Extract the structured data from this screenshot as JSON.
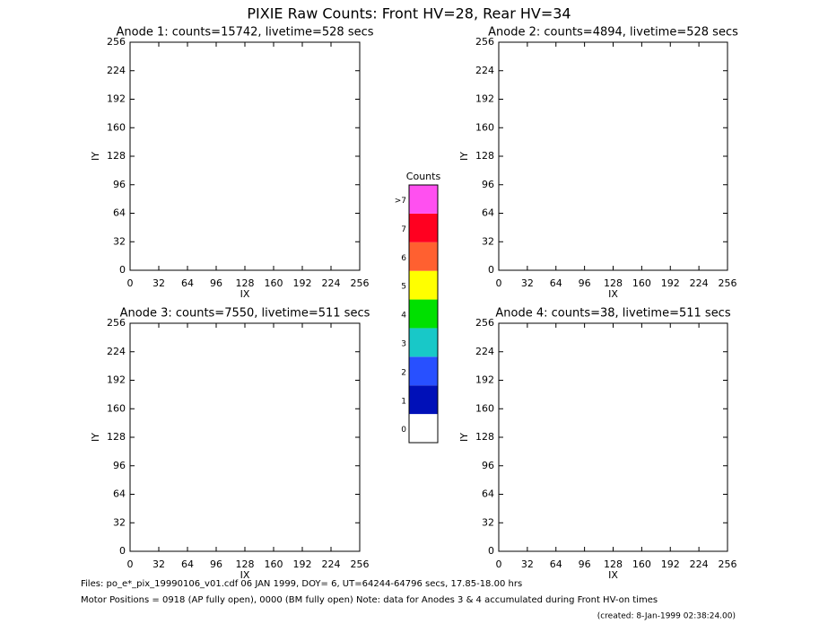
{
  "header": {
    "title": "PIXIE Raw Counts:  Front HV=28, Rear HV=34"
  },
  "chart_data": [
    {
      "type": "image",
      "title": "Anode 1: counts=15742, livetime=528 secs",
      "xlabel": "IX",
      "ylabel": "IY",
      "xlim": [
        0,
        256
      ],
      "ylim": [
        0,
        256
      ],
      "xticks": [
        0,
        32,
        64,
        96,
        128,
        160,
        192,
        224,
        256
      ],
      "yticks": [
        0,
        32,
        64,
        96,
        128,
        160,
        192,
        224,
        256
      ]
    },
    {
      "type": "image",
      "title": "Anode 2: counts=4894, livetime=528 secs",
      "xlabel": "IX",
      "ylabel": "IY",
      "xlim": [
        0,
        256
      ],
      "ylim": [
        0,
        256
      ],
      "xticks": [
        0,
        32,
        64,
        96,
        128,
        160,
        192,
        224,
        256
      ],
      "yticks": [
        0,
        32,
        64,
        96,
        128,
        160,
        192,
        224,
        256
      ]
    },
    {
      "type": "image",
      "title": "Anode 3: counts=7550, livetime=511 secs",
      "xlabel": "IX",
      "ylabel": "IY",
      "xlim": [
        0,
        256
      ],
      "ylim": [
        0,
        256
      ],
      "xticks": [
        0,
        32,
        64,
        96,
        128,
        160,
        192,
        224,
        256
      ],
      "yticks": [
        0,
        32,
        64,
        96,
        128,
        160,
        192,
        224,
        256
      ]
    },
    {
      "type": "image",
      "title": "Anode 4: counts=38, livetime=511 secs",
      "xlabel": "IX",
      "ylabel": "IY",
      "xlim": [
        0,
        256
      ],
      "ylim": [
        0,
        256
      ],
      "xticks": [
        0,
        32,
        64,
        96,
        128,
        160,
        192,
        224,
        256
      ],
      "yticks": [
        0,
        32,
        64,
        96,
        128,
        160,
        192,
        224,
        256
      ]
    }
  ],
  "colorbar": {
    "title": "Counts",
    "labels": [
      "0",
      "1",
      "2",
      "3",
      "4",
      "5",
      "6",
      "7",
      ">7"
    ],
    "colors": [
      "#ffffff",
      "#0010b8",
      "#2850ff",
      "#18c8c8",
      "#00e000",
      "#ffff00",
      "#ff6030",
      "#ff0020",
      "#ff50f0"
    ]
  },
  "footer": {
    "files": "Files: po_e*_pix_19990106_v01.cdf    06 JAN 1999, DOY=  6, UT=64244-64796 secs, 17.85-18.00 hrs",
    "motor": "Motor Positions = 0918 (AP fully open), 0000 (BM fully open)    Note: data for Anodes 3 & 4 accumulated during Front HV-on times",
    "created": "(created:  8-Jan-1999 02:38:24.00)"
  }
}
